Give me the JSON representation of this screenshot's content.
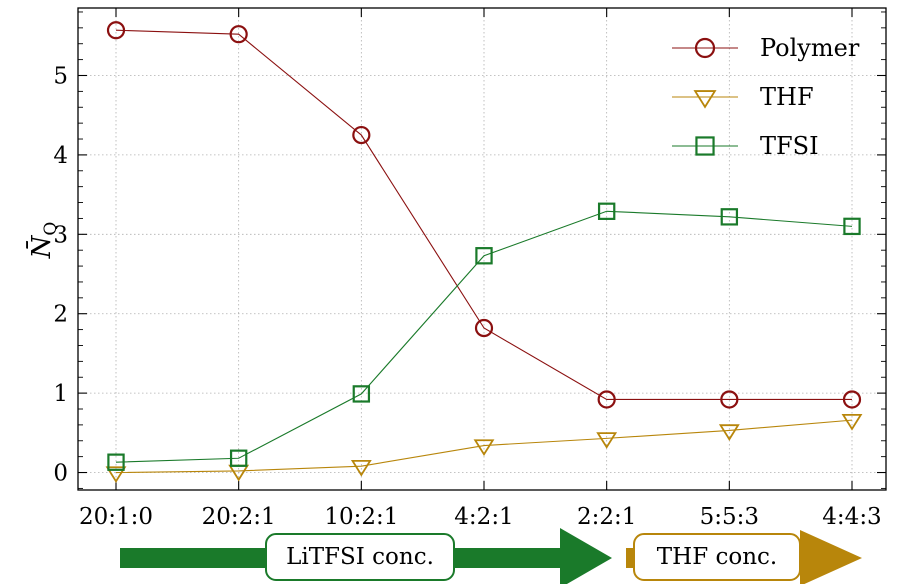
{
  "chart_data": {
    "type": "line",
    "categories": [
      "20:1:0",
      "20:2:1",
      "10:2:1",
      "4:2:1",
      "2:2:1",
      "5:5:3",
      "4:4:3"
    ],
    "ylabel": "N̄",
    "ylabel_subscript": "O",
    "ylim": [
      -0.22,
      5.85
    ],
    "yticks": [
      0,
      1,
      2,
      3,
      4,
      5
    ],
    "grid": true,
    "legend_position": "top-right",
    "series": [
      {
        "name": "Polymer",
        "marker": "circle",
        "color": "#8b1010",
        "values": [
          5.57,
          5.52,
          4.25,
          1.82,
          0.92,
          0.92,
          0.92
        ]
      },
      {
        "name": "THF",
        "marker": "triangle-down",
        "color": "#b8860b",
        "values": [
          0.0,
          0.02,
          0.08,
          0.34,
          0.43,
          0.53,
          0.66
        ]
      },
      {
        "name": "TFSI",
        "marker": "square",
        "color": "#1a7a2a",
        "values": [
          0.13,
          0.18,
          0.99,
          2.73,
          3.29,
          3.22,
          3.1
        ]
      }
    ],
    "annotations": [
      {
        "label": "LiTFSI conc.",
        "color": "#1a7a2a"
      },
      {
        "label": "THF conc.",
        "color": "#b8860b"
      }
    ]
  }
}
